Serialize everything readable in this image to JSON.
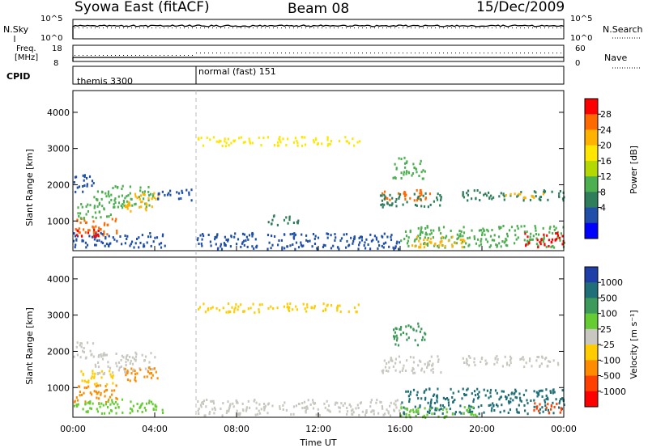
{
  "title": {
    "station": "Syowa East (fitACF)",
    "beam": "Beam 08",
    "date": "15/Dec/2009"
  },
  "strips": {
    "nsky_label": "N.Sky",
    "nsky_ticks": [
      "10^5",
      "10^0"
    ],
    "nsearch_label": "N.Search",
    "nsearch_ticks": [
      "10^5",
      "10^0"
    ],
    "freq_label_1": "Freq.",
    "freq_label_2": "[MHz]",
    "freq_ticks": [
      "18",
      "8"
    ],
    "nave_label": "Nave",
    "nave_ticks": [
      "60",
      "0"
    ],
    "cpid_label": "CPID",
    "cpid_segments": [
      {
        "name": "themis 3300",
        "start_hour": 0
      },
      {
        "name": "normal (fast) 151",
        "start_hour": 6
      }
    ]
  },
  "axes": {
    "ylabel": "Slant Range [km]",
    "yticks": [
      "4000",
      "3000",
      "2000",
      "1000"
    ],
    "xticks": [
      "00:00",
      "04:00",
      "08:00",
      "12:00",
      "16:00",
      "20:00",
      "00:00"
    ],
    "xlabel": "Time UT"
  },
  "colorbars": {
    "power": {
      "label": "Power [dB]",
      "ticks": [
        "28",
        "24",
        "20",
        "16",
        "12",
        "8",
        "4"
      ],
      "colors": [
        "#ff0000",
        "#ff6a00",
        "#ffb300",
        "#ffe600",
        "#b4d900",
        "#4caf50",
        "#2e7d5b",
        "#1f4fa8",
        "#0000ff"
      ]
    },
    "velocity": {
      "label": "Velocity [m s⁻¹]",
      "ticks": [
        "1000",
        "500",
        "100",
        "25",
        "-25",
        "-100",
        "-500",
        "-1000"
      ],
      "colors": [
        "#1f3fa8",
        "#1f6f78",
        "#3c9a5a",
        "#66cc33",
        "#c8c8c0",
        "#ffcc00",
        "#ff8c00",
        "#ff4000",
        "#ff0000"
      ]
    }
  },
  "chart_data": {
    "type": "heatmap",
    "x_unit": "hour UT",
    "y_unit": "km",
    "xlim": [
      0,
      24
    ],
    "ylim": [
      180,
      4600
    ],
    "power_regions": [
      {
        "t0": 0.0,
        "t1": 2.2,
        "r0": 600,
        "r1": 1100,
        "color": "#ff6a00"
      },
      {
        "t0": 0.2,
        "t1": 2.0,
        "r0": 1100,
        "r1": 1500,
        "color": "#4caf50"
      },
      {
        "t0": 0.0,
        "t1": 1.0,
        "r0": 1800,
        "r1": 2300,
        "color": "#1f4fa8"
      },
      {
        "t0": 1.0,
        "t1": 4.0,
        "r0": 1400,
        "r1": 2000,
        "color": "#4caf50"
      },
      {
        "t0": 2.5,
        "t1": 4.2,
        "r0": 1300,
        "r1": 1800,
        "color": "#ffb300"
      },
      {
        "t0": 0.0,
        "t1": 4.5,
        "r0": 300,
        "r1": 700,
        "color": "#1f4fa8"
      },
      {
        "t0": 4.0,
        "t1": 5.8,
        "r0": 1600,
        "r1": 1900,
        "color": "#1f4fa8"
      },
      {
        "t0": 0.0,
        "t1": 1.5,
        "r0": 600,
        "r1": 800,
        "color": "#ff0000"
      },
      {
        "t0": 6.0,
        "t1": 16.0,
        "r0": 250,
        "r1": 700,
        "color": "#1f4fa8"
      },
      {
        "t0": 9.5,
        "t1": 11.0,
        "r0": 900,
        "r1": 1200,
        "color": "#2e7d5b"
      },
      {
        "t0": 15.0,
        "t1": 17.5,
        "r0": 1600,
        "r1": 1900,
        "color": "#ff6a00"
      },
      {
        "t0": 15.0,
        "t1": 18.0,
        "r0": 1400,
        "r1": 1800,
        "color": "#2e7d5b"
      },
      {
        "t0": 15.6,
        "t1": 17.2,
        "r0": 2200,
        "r1": 2800,
        "color": "#4caf50"
      },
      {
        "t0": 16.0,
        "t1": 24.0,
        "r0": 300,
        "r1": 900,
        "color": "#4caf50"
      },
      {
        "t0": 16.5,
        "t1": 19.5,
        "r0": 300,
        "r1": 600,
        "color": "#ffb300"
      },
      {
        "t0": 19.0,
        "t1": 24.0,
        "r0": 1600,
        "r1": 1900,
        "color": "#2e7d5b"
      },
      {
        "t0": 21.0,
        "t1": 23.0,
        "r0": 1650,
        "r1": 1800,
        "color": "#ffb300"
      },
      {
        "t0": 22.0,
        "t1": 24.0,
        "r0": 300,
        "r1": 700,
        "color": "#ff0000"
      },
      {
        "t0": 6.0,
        "t1": 14.0,
        "r0": 3100,
        "r1": 3350,
        "color": "#ffe600"
      }
    ],
    "velocity_regions": [
      {
        "t0": 0.0,
        "t1": 2.2,
        "r0": 600,
        "r1": 1100,
        "color": "#ff8c00"
      },
      {
        "t0": 0.2,
        "t1": 2.0,
        "r0": 1100,
        "r1": 1500,
        "color": "#ffcc00"
      },
      {
        "t0": 0.0,
        "t1": 1.0,
        "r0": 1800,
        "r1": 2300,
        "color": "#c8c8c0"
      },
      {
        "t0": 1.0,
        "t1": 4.0,
        "r0": 1400,
        "r1": 2000,
        "color": "#c8c8c0"
      },
      {
        "t0": 2.5,
        "t1": 4.2,
        "r0": 1200,
        "r1": 1600,
        "color": "#ff8c00"
      },
      {
        "t0": 0.0,
        "t1": 4.5,
        "r0": 300,
        "r1": 700,
        "color": "#66cc33"
      },
      {
        "t0": 6.0,
        "t1": 16.0,
        "r0": 250,
        "r1": 700,
        "color": "#c8c8c0"
      },
      {
        "t0": 15.0,
        "t1": 18.0,
        "r0": 1400,
        "r1": 1900,
        "color": "#c8c8c0"
      },
      {
        "t0": 15.6,
        "t1": 17.2,
        "r0": 2200,
        "r1": 2800,
        "color": "#3c9a5a"
      },
      {
        "t0": 16.0,
        "t1": 24.0,
        "r0": 300,
        "r1": 1000,
        "color": "#1f6f78"
      },
      {
        "t0": 16.0,
        "t1": 20.0,
        "r0": 200,
        "r1": 500,
        "color": "#66cc33"
      },
      {
        "t0": 19.0,
        "t1": 24.0,
        "r0": 1600,
        "r1": 1900,
        "color": "#c8c8c0"
      },
      {
        "t0": 22.5,
        "t1": 24.0,
        "r0": 300,
        "r1": 600,
        "color": "#ff4000"
      },
      {
        "t0": 6.0,
        "t1": 14.0,
        "r0": 3100,
        "r1": 3350,
        "color": "#ffcc00"
      }
    ]
  }
}
